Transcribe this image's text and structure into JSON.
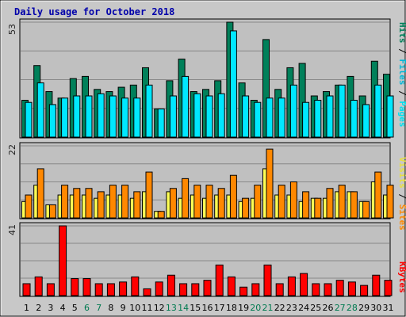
{
  "chart_data": {
    "type": "bar",
    "title": "Daily usage for October 2018",
    "days": [
      "1",
      "2",
      "3",
      "4",
      "5",
      "6",
      "7",
      "8",
      "9",
      "10",
      "11",
      "12",
      "13",
      "14",
      "15",
      "16",
      "17",
      "18",
      "19",
      "20",
      "21",
      "22",
      "23",
      "24",
      "25",
      "26",
      "27",
      "28",
      "29",
      "30",
      "31"
    ],
    "weekend_days": [
      "6",
      "7",
      "13",
      "14",
      "20",
      "21",
      "27",
      "28"
    ],
    "panels": [
      {
        "name": "pages-files-hits",
        "ymax": 53,
        "ymax_label": "53",
        "side_labels": [
          "Hits",
          "Files",
          "Pages"
        ],
        "series": [
          {
            "name": "Hits",
            "color": "#00805a",
            "values": [
              17,
              33,
              21,
              18,
              27,
              28,
              22,
              21,
              23,
              24,
              32,
              13,
              26,
              36,
              21,
              22,
              26,
              53,
              25,
              17,
              45,
              22,
              32,
              34,
              19,
              21,
              24,
              28,
              19,
              35,
              29
            ]
          },
          {
            "name": "Files",
            "color": "#00e8ff",
            "values": [
              16,
              25,
              15,
              18,
              19,
              19,
              20,
              19,
              18,
              18,
              24,
              13,
              19,
              28,
              20,
              19,
              20,
              49,
              19,
              16,
              18,
              18,
              24,
              16,
              17,
              19,
              24,
              17,
              15,
              24,
              19
            ]
          }
        ]
      },
      {
        "name": "sites-visits",
        "ymax": 22,
        "ymax_label": "22",
        "side_labels": [
          "Visits",
          "Sites"
        ],
        "series": [
          {
            "name": "Visits",
            "color": "#ffff55",
            "values": [
              5,
              10,
              4,
              7,
              7,
              7,
              6,
              7,
              7,
              6,
              8,
              2,
              8,
              6,
              7,
              6,
              7,
              7,
              5,
              6,
              15,
              7,
              7,
              5,
              6,
              6,
              8,
              8,
              5,
              11,
              7
            ]
          },
          {
            "name": "Sites",
            "color": "#ff8800",
            "values": [
              7,
              15,
              4,
              10,
              9,
              9,
              8,
              10,
              10,
              8,
              14,
              2,
              9,
              12,
              10,
              10,
              9,
              13,
              6,
              10,
              21,
              10,
              11,
              8,
              6,
              9,
              10,
              8,
              5,
              14,
              10
            ]
          }
        ]
      },
      {
        "name": "kbytes",
        "ymax": 41,
        "ymax_label": "41",
        "side_labels": [
          "KBytes"
        ],
        "series": [
          {
            "name": "KBytes",
            "color": "#ff0000",
            "values": [
              7,
              11,
              7,
              41,
              10,
              10,
              7,
              7,
              8,
              11,
              4,
              8,
              12,
              7,
              7,
              9,
              18,
              11,
              5,
              7,
              18,
              7,
              11,
              13,
              7,
              7,
              9,
              8,
              6,
              12,
              9
            ]
          }
        ]
      }
    ]
  }
}
